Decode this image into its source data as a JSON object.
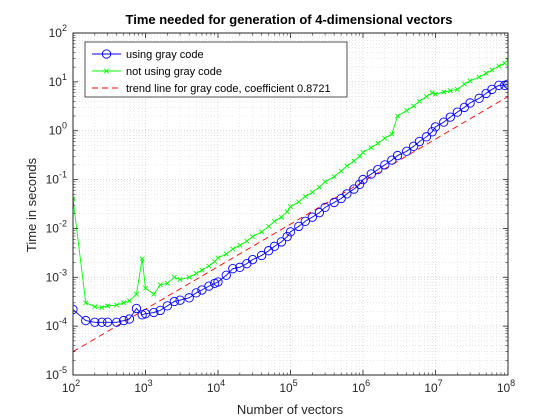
{
  "chart_data": {
    "type": "line",
    "title": "Time needed for generation of 4-dimensional vectors",
    "xlabel": "Number of vectors",
    "ylabel": "Time in seconds",
    "xscale": "log",
    "yscale": "log",
    "xlim": [
      100,
      100000000
    ],
    "ylim": [
      1e-05,
      100
    ],
    "grid": true,
    "minor_grid": true,
    "legend_position": "top-left",
    "x_ticks": [
      {
        "base": "10",
        "exp": "2"
      },
      {
        "base": "10",
        "exp": "3"
      },
      {
        "base": "10",
        "exp": "4"
      },
      {
        "base": "10",
        "exp": "5"
      },
      {
        "base": "10",
        "exp": "6"
      },
      {
        "base": "10",
        "exp": "7"
      },
      {
        "base": "10",
        "exp": "8"
      }
    ],
    "y_ticks": [
      {
        "base": "10",
        "exp": "-5"
      },
      {
        "base": "10",
        "exp": "-4"
      },
      {
        "base": "10",
        "exp": "-3"
      },
      {
        "base": "10",
        "exp": "-2"
      },
      {
        "base": "10",
        "exp": "-1"
      },
      {
        "base": "10",
        "exp": "0"
      },
      {
        "base": "10",
        "exp": "1"
      },
      {
        "base": "10",
        "exp": "2"
      }
    ],
    "x": [
      100,
      150,
      200,
      250,
      300,
      400,
      500,
      600,
      750,
      900,
      1000,
      1300,
      1600,
      2000,
      2500,
      3000,
      4000,
      5000,
      6000,
      7500,
      9000,
      10000,
      13000,
      16000,
      20000,
      25000,
      30000,
      40000,
      50000,
      60000,
      75000,
      90000,
      100000,
      130000,
      160000,
      200000,
      250000,
      300000,
      400000,
      500000,
      600000,
      750000,
      900000,
      1000000,
      1300000,
      1600000,
      2000000,
      2500000,
      3000000,
      4000000,
      5000000,
      6000000,
      7500000,
      9000000,
      10000000,
      13000000,
      16000000,
      20000000,
      25000000,
      30000000,
      40000000,
      50000000,
      60000000,
      75000000,
      90000000,
      100000000
    ],
    "series": [
      {
        "name": "using gray code",
        "color": "#0000ff",
        "marker": "circle",
        "linestyle": "solid",
        "y": [
          0.00022,
          0.00013,
          0.00012,
          0.00012,
          0.00012,
          0.00012,
          0.00013,
          0.00014,
          0.00023,
          0.00017,
          0.00018,
          0.00019,
          0.00021,
          0.00026,
          0.00032,
          0.00034,
          0.00038,
          0.00048,
          0.00055,
          0.00066,
          0.00075,
          0.0008,
          0.0011,
          0.0015,
          0.0016,
          0.0019,
          0.0023,
          0.0028,
          0.0035,
          0.0043,
          0.0053,
          0.0068,
          0.0085,
          0.011,
          0.014,
          0.017,
          0.021,
          0.027,
          0.034,
          0.041,
          0.051,
          0.064,
          0.08,
          0.1,
          0.13,
          0.16,
          0.2,
          0.25,
          0.31,
          0.38,
          0.48,
          0.6,
          0.75,
          0.95,
          1.2,
          1.5,
          1.9,
          2.4,
          3.0,
          3.7,
          4.6,
          5.8,
          7.0,
          8.5,
          8.5,
          9.0
        ]
      },
      {
        "name": "not using gray code",
        "color": "#00ff00",
        "marker": "x",
        "linestyle": "solid",
        "y": [
          0.04,
          0.0003,
          0.00025,
          0.00024,
          0.00026,
          0.00027,
          0.0003,
          0.00033,
          0.00045,
          0.0024,
          0.0006,
          0.00045,
          0.0007,
          0.00075,
          0.001,
          0.0009,
          0.001,
          0.0012,
          0.0014,
          0.0017,
          0.0021,
          0.0025,
          0.003,
          0.0038,
          0.0045,
          0.0055,
          0.0068,
          0.0085,
          0.011,
          0.014,
          0.017,
          0.022,
          0.028,
          0.035,
          0.045,
          0.055,
          0.07,
          0.09,
          0.115,
          0.15,
          0.19,
          0.24,
          0.3,
          0.36,
          0.45,
          0.55,
          0.7,
          0.85,
          2.0,
          2.6,
          3.2,
          4.0,
          5.0,
          6.0,
          5.6,
          6.2,
          6.6,
          7.0,
          9.0,
          10.5,
          12.5,
          15.0,
          17.5,
          21.0,
          24.0,
          28.0
        ]
      },
      {
        "name": "trend line for gray code, coefficient 0.8721",
        "color": "#ff0000",
        "marker": "none",
        "linestyle": "dashed",
        "x": [
          100,
          100000000
        ],
        "y": [
          3e-05,
          5.0
        ]
      }
    ]
  }
}
